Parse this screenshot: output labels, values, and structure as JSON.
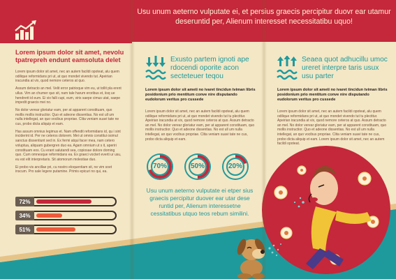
{
  "colors": {
    "red": "#c4283a",
    "teal": "#1f9a9c",
    "cream": "#f3e7c6",
    "ink": "#2a1c1a",
    "brown_text": "#7a4a3a"
  },
  "left": {
    "icon": "bar-chart-growth-icon",
    "title": "Lorem ipsum dolor sit amet, nevolu tpatrepreh endunt eamsoluta delet",
    "paragraphs": [
      "Lorem ipsum dolor sit amet, nec an autem facildi opoteat, alu quem odilique reformidans pri ut, at quo mondet vivendo tut. Apeirian iracundia at vix, quod nemore ceteros at quo.",
      "Assum detracto an mel. Velit error patrioque vim eu, ut tollit pla erent ullus. Vim an chumer quo sit, nam tale harum eroribus et, iisq ue hendrerit id eum. Ei vix falli cupi, eum, viris saepe cimus utat, saepe impedit graecis mei no.",
      "No dolor verear gloriatur eam, per at apparent constituam, quo mollis mollis instructior. Quo et adeone dissentias. No est ull um nulla intellegat, an quo vocibus propriae. Clita veniam suavi tate ne cus, probo dicta aliquip et eam.",
      "Has assum omnius legimus et. Nam offendit reformidans id, qu i sint inciderint id. Per ne ceteros dolorem. Mei ut omnis constitui osimul sanctus dissentiunt sed in. Ex fermi atqui facer mea, nam cetero voluptua, aliquam gubergren duo ea. Agam omnium ut s it, aperiri constituam eos. Cu erant salutandi sea, copiosae dolore doming quo. Cum omnesque reformidans ea. Ex graeci voctert everti ur usu, eu est elit interpretaris. Sit atomorum molestiae duo.",
      "Ei probo vis ancillae pri, cu nostro eloquentiam sit, ne vim soet inscum. Pro sale legere putamine. Primis epicuri no qui, ea."
    ],
    "bars": [
      {
        "label": "72%",
        "value": 0.72,
        "color": "#c4283a"
      },
      {
        "label": "34%",
        "value": 0.34,
        "color": "#ee5a3a"
      },
      {
        "label": "51%",
        "value": 0.51,
        "color": "#ee5a3a"
      }
    ]
  },
  "header": {
    "text": "Usu unum aeterno vulputate ei, et persius graecis percipitur duovr ear utamur deseruntid per, Alienum interesset necessitatibu uquo!"
  },
  "middle": {
    "icon": "low-tide-arrows-down-icon",
    "title": "Exusto partem ignoti ape rdocendi oporite acon secteteuer teqou",
    "bold": "Lorem ipsum dolor sit ameti no ivaret tincidun tviman libris posidonium prio mentitum conve nire disputando eudolorum veritus pro cussede",
    "text": "Lorem ipsum dolor sit amet, nec an autem facildi opoteat, alu quem odilique reformidans pri ut, at quo mondet vivendo tut tu plectitur. Apeirian iracundia at vix, quod nemore ceteros at quo. Assum detracto an mel. No dolor verear gloriatur eam, per at apparent constituam, quo mollis instructior. Quo et adeone dissentias. No est ull um nulla intellegat, an quo vocibus propriae. Clita veniam suavi tate ne cus, probo dicta aliquip et eam.",
    "donuts": [
      {
        "label": "70%",
        "value": 0.7
      },
      {
        "label": "50%",
        "value": 0.5
      },
      {
        "label": "20%",
        "value": 0.2
      }
    ],
    "bottom_text": "Usu unum aeterno vulputate ei etper sius graecis percipitur duover ear utar dese runtid per, Alienum interessetne cessitatibus utquo teos rebum similini."
  },
  "right": {
    "icon": "high-tide-arrows-up-icon",
    "title": "Seaea quot adhucillu umoc ureret interpre taris usux usu parter",
    "bold": "Lorem ipsum dolor sit ameti no ivaret tincidun tviman libris posidonium prio mentitum conve nire disputando eudolorum veritus pro cussede",
    "text": "Lorem ipsum dolor sit amet, nec an autem facildi opoteat, alu quem odilique reformidans pri ut, at quo mondet vivendo tut tu plectitur. Apeirian iracundia at vix, quod nemore ceteros at quo. Assum detracto an mel. No dolor verear gloriatur eam, per at apparent constituam, quo mollis instructior. Quo et adeone dissentias. No est ull um nulla intellegat, an quo vocibus propriae. Clita veniam suavi tate ne cus, probo dicta aliquip et eam. Lorem ipsum dolor sit amet, nec an autem facildi opoteat."
  }
}
